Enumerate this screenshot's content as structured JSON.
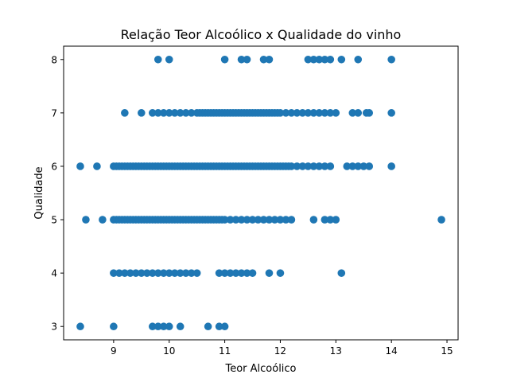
{
  "chart_data": {
    "type": "scatter",
    "title": "Relação Teor Alcoólico x Qualidade do vinho",
    "xlabel": "Teor Alcoólico",
    "ylabel": "Qualidade",
    "xlim": [
      8.1,
      15.2
    ],
    "ylim": [
      2.75,
      8.25
    ],
    "xticks": [
      "9",
      "10",
      "11",
      "12",
      "13",
      "14",
      "15"
    ],
    "yticks": [
      "3",
      "4",
      "5",
      "6",
      "7",
      "8"
    ],
    "grid": false,
    "color": "#1f77b4",
    "points": {
      "3": [
        8.4,
        9.0,
        9.7,
        9.8,
        9.9,
        10.0,
        10.2,
        10.7,
        10.9,
        11.0
      ],
      "4": [
        9.0,
        9.1,
        9.2,
        9.3,
        9.4,
        9.5,
        9.6,
        9.7,
        9.8,
        9.9,
        10.0,
        10.1,
        10.2,
        10.3,
        10.4,
        10.5,
        10.9,
        11.0,
        11.1,
        11.2,
        11.3,
        11.4,
        11.5,
        11.8,
        12.0,
        13.1
      ],
      "5": [
        8.5,
        8.8,
        9.0,
        9.05,
        9.1,
        9.15,
        9.2,
        9.25,
        9.3,
        9.35,
        9.4,
        9.45,
        9.5,
        9.55,
        9.6,
        9.65,
        9.7,
        9.75,
        9.8,
        9.85,
        9.9,
        9.95,
        10.0,
        10.05,
        10.1,
        10.15,
        10.2,
        10.25,
        10.3,
        10.35,
        10.4,
        10.45,
        10.5,
        10.55,
        10.6,
        10.65,
        10.7,
        10.75,
        10.8,
        10.85,
        10.9,
        10.95,
        11.0,
        11.1,
        11.2,
        11.3,
        11.4,
        11.5,
        11.6,
        11.7,
        11.8,
        11.9,
        12.0,
        12.1,
        12.2,
        12.6,
        12.8,
        12.9,
        13.0,
        14.9
      ],
      "6": [
        8.4,
        8.7,
        9.0,
        9.05,
        9.1,
        9.15,
        9.2,
        9.25,
        9.3,
        9.35,
        9.4,
        9.45,
        9.5,
        9.55,
        9.6,
        9.65,
        9.7,
        9.75,
        9.8,
        9.85,
        9.9,
        9.95,
        10.0,
        10.05,
        10.1,
        10.15,
        10.2,
        10.25,
        10.3,
        10.35,
        10.4,
        10.45,
        10.5,
        10.55,
        10.6,
        10.65,
        10.7,
        10.75,
        10.8,
        10.85,
        10.9,
        10.95,
        11.0,
        11.05,
        11.1,
        11.15,
        11.2,
        11.25,
        11.3,
        11.35,
        11.4,
        11.45,
        11.5,
        11.55,
        11.6,
        11.65,
        11.7,
        11.75,
        11.8,
        11.85,
        11.9,
        11.95,
        12.0,
        12.05,
        12.1,
        12.15,
        12.2,
        12.3,
        12.4,
        12.5,
        12.6,
        12.7,
        12.8,
        12.9,
        13.2,
        13.3,
        13.4,
        13.5,
        13.6,
        14.0
      ],
      "7": [
        9.2,
        9.5,
        9.7,
        9.8,
        9.9,
        10.0,
        10.1,
        10.2,
        10.3,
        10.4,
        10.5,
        10.55,
        10.6,
        10.65,
        10.7,
        10.75,
        10.8,
        10.85,
        10.9,
        10.95,
        11.0,
        11.05,
        11.1,
        11.15,
        11.2,
        11.25,
        11.3,
        11.35,
        11.4,
        11.45,
        11.5,
        11.55,
        11.6,
        11.65,
        11.7,
        11.75,
        11.8,
        11.85,
        11.9,
        11.95,
        12.0,
        12.1,
        12.2,
        12.3,
        12.4,
        12.5,
        12.6,
        12.7,
        12.8,
        12.9,
        13.0,
        13.3,
        13.4,
        13.55,
        13.6,
        14.0
      ],
      "8": [
        9.8,
        10.0,
        11.0,
        11.3,
        11.4,
        11.7,
        11.8,
        12.5,
        12.6,
        12.7,
        12.8,
        12.9,
        13.1,
        13.4,
        14.0
      ]
    }
  }
}
